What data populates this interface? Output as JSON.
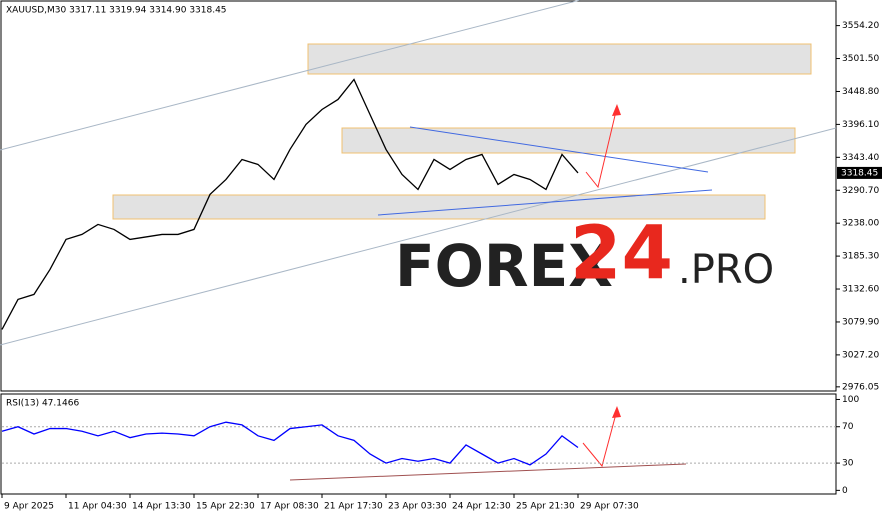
{
  "chart_data": [
    {
      "type": "line",
      "title": "XAUUSD,M30  3317.11 3319.94 3314.90 3318.45",
      "color": "#000000",
      "categories": [
        "9 Apr 2025",
        null,
        null,
        null,
        "11 Apr 04:30",
        null,
        null,
        null,
        "14 Apr 13:30",
        null,
        null,
        null,
        "15 Apr 22:30",
        null,
        null,
        null,
        "17 Apr 08:30",
        null,
        null,
        null,
        "21 Apr 17:30",
        null,
        null,
        null,
        "23 Apr 03:30",
        null,
        null,
        null,
        "24 Apr 12:30",
        null,
        null,
        null,
        "25 Apr 21:30",
        null,
        null,
        null,
        "29 Apr 07:30",
        null,
        null,
        null,
        null,
        null,
        null,
        null,
        null,
        null,
        null,
        null,
        null,
        null,
        null,
        null,
        null
      ],
      "values": [
        3068,
        3116,
        3124,
        3164,
        3212,
        3220,
        3236,
        3228,
        3212,
        3216,
        3220,
        3220,
        3228,
        3284,
        3308,
        3340,
        3332,
        3308,
        3356,
        3396,
        3420,
        3436,
        3468,
        3412,
        3356,
        3316,
        3292,
        3340,
        3324,
        3340,
        3348,
        3300,
        3316,
        3308,
        3292,
        3348,
        3318.45,
        null,
        null,
        null,
        null,
        null,
        null,
        null,
        null,
        null,
        null,
        null,
        null,
        null,
        null,
        null,
        null
      ],
      "last_price_label": 3318.45,
      "ylim": [
        2971,
        3592
      ],
      "yticks": [
        {
          "value": 3554.2,
          "label": "3554.20"
        },
        {
          "value": 3501.5,
          "label": "3501.50"
        },
        {
          "value": 3448.8,
          "label": "3448.80"
        },
        {
          "value": 3396.1,
          "label": "3396.10"
        },
        {
          "value": 3343.4,
          "label": "3343.40"
        },
        {
          "value": 3290.7,
          "label": "3290.70"
        },
        {
          "value": 3238,
          "label": "3238.00"
        },
        {
          "value": 3185.3,
          "label": "3185.30"
        },
        {
          "value": 3132.6,
          "label": "3132.60"
        },
        {
          "value": 3079.9,
          "label": "3079.90"
        },
        {
          "value": 3027.2,
          "label": "3027.20"
        },
        2976.05
      ],
      "watermark": [
        "FOREX",
        "24",
        ".PRO"
      ]
    },
    {
      "type": "line",
      "title": "RSI(13) 47.1466",
      "color": "#0000ff",
      "values": [
        65,
        70,
        62,
        68,
        68,
        65,
        60,
        65,
        58,
        62,
        63,
        62,
        60,
        70,
        75,
        72,
        60,
        55,
        68,
        70,
        72,
        60,
        55,
        40,
        30,
        35,
        32,
        35,
        30,
        50,
        40,
        30,
        35,
        28,
        40,
        60,
        47.1466,
        null,
        null,
        null,
        null,
        null,
        null,
        null,
        null,
        null,
        null,
        null,
        null,
        null,
        null,
        null,
        null
      ],
      "ylim": [
        -4,
        106
      ],
      "yticks": [
        100,
        70,
        30,
        0
      ]
    }
  ]
}
